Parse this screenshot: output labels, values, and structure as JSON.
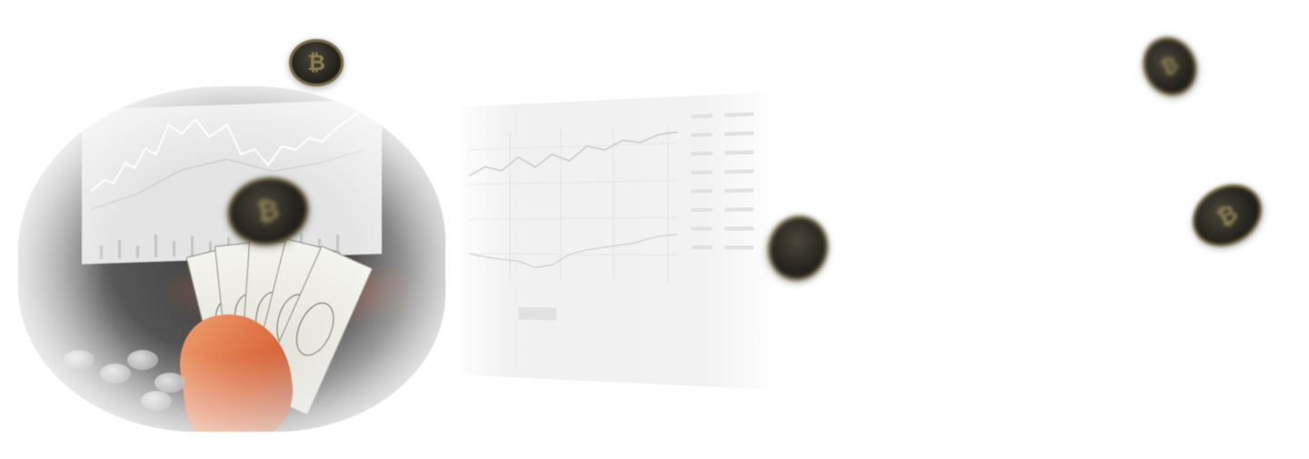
{
  "scene": {
    "description_tag": "crypto-finance-hero",
    "coin_symbol": "₿",
    "colors": {
      "background": "#ffffff",
      "coin_dark": "#26241e",
      "coin_rim": "#7a6c45",
      "hand_warm": "#d8663a"
    },
    "icons": [
      "bitcoin-coin-icon",
      "dollar-bill-icon",
      "price-chart-icon"
    ]
  }
}
